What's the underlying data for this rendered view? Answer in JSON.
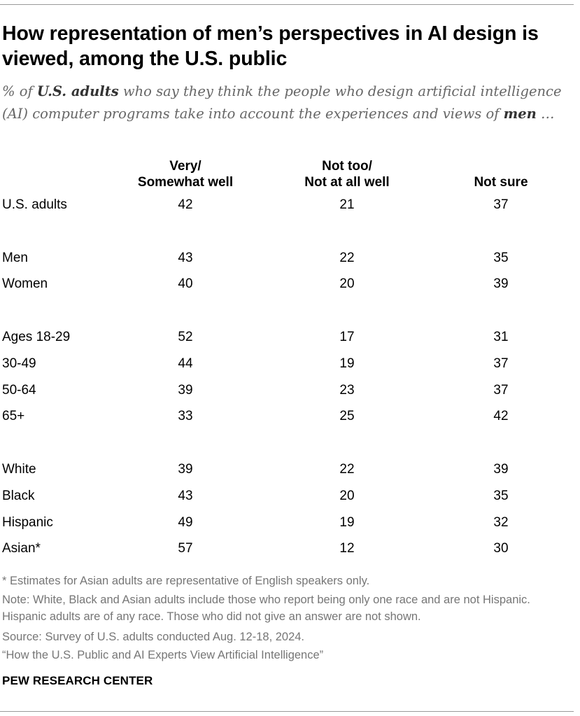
{
  "title": "How representation of men’s perspectives in AI design is viewed, among the U.S. public",
  "subtitle": {
    "p1": "% of ",
    "b1": "U.S. adults",
    "p2": " who say they think the people who design artificial intelligence (AI) computer programs take into account the experiences and views of ",
    "b2": "men",
    "p3": " …"
  },
  "chart_data": {
    "type": "table",
    "title": "How representation of men’s perspectives in AI design is viewed, among the U.S. public",
    "columns": [
      {
        "line1": "Very/",
        "line2": "Somewhat well"
      },
      {
        "line1": "Not too/",
        "line2": "Not at all well"
      },
      {
        "line1": "",
        "line2": "Not sure"
      }
    ],
    "groups": [
      {
        "rows": [
          {
            "label": "U.S. adults",
            "values": [
              "42",
              "21",
              "37"
            ]
          }
        ]
      },
      {
        "rows": [
          {
            "label": "Men",
            "values": [
              "43",
              "22",
              "35"
            ]
          },
          {
            "label": "Women",
            "values": [
              "40",
              "20",
              "39"
            ]
          }
        ]
      },
      {
        "rows": [
          {
            "label": "Ages 18-29",
            "values": [
              "52",
              "17",
              "31"
            ]
          },
          {
            "label": "30-49",
            "values": [
              "44",
              "19",
              "37"
            ]
          },
          {
            "label": "50-64",
            "values": [
              "39",
              "23",
              "37"
            ]
          },
          {
            "label": "65+",
            "values": [
              "33",
              "25",
              "42"
            ]
          }
        ]
      },
      {
        "rows": [
          {
            "label": "White",
            "values": [
              "39",
              "22",
              "39"
            ]
          },
          {
            "label": "Black",
            "values": [
              "43",
              "20",
              "35"
            ]
          },
          {
            "label": "Hispanic",
            "values": [
              "49",
              "19",
              "32"
            ]
          },
          {
            "label": "Asian*",
            "values": [
              "57",
              "12",
              "30"
            ]
          }
        ]
      }
    ]
  },
  "notes": {
    "asterisk": "* Estimates for Asian adults are representative of English speakers only.",
    "note": "Note: White, Black and Asian adults include those who report being only one race and are not Hispanic. Hispanic adults are of any race. Those who did not give an answer are not shown.",
    "source": "Source: Survey of U.S. adults conducted Aug. 12-18, 2024.",
    "report": "“How the U.S. Public and AI Experts View Artificial Intelligence”"
  },
  "brand": "PEW RESEARCH CENTER"
}
